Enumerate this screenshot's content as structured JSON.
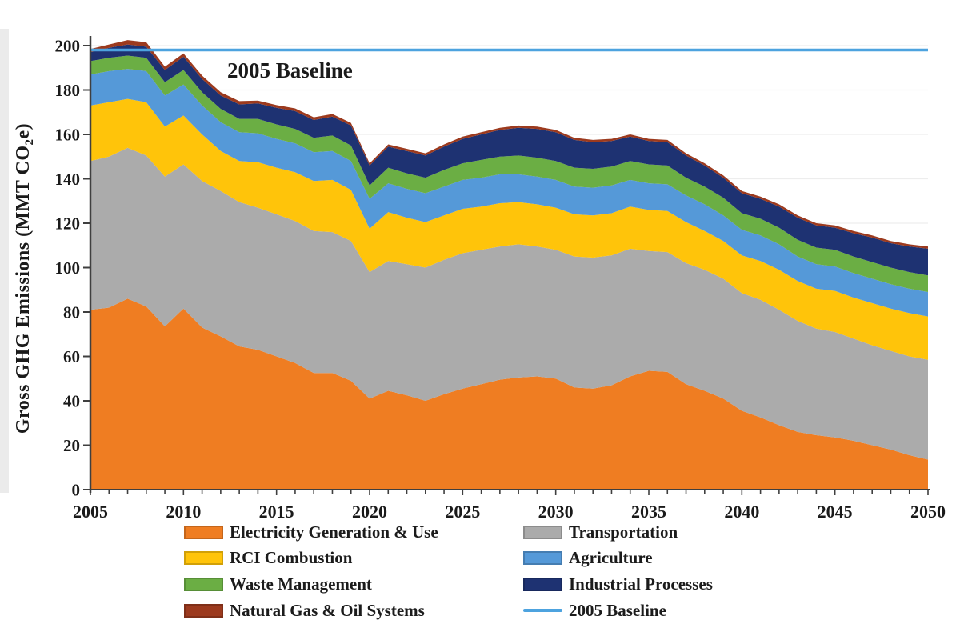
{
  "annotation": {
    "baseline_label": "2005 Baseline",
    "color": "#3E8EDE"
  },
  "axes": {
    "y_title_prefix": "Gross GHG Emissions (MMT CO",
    "y_title_sub": "2",
    "y_title_suffix": "e)",
    "y_ticks": [
      0,
      20,
      40,
      60,
      80,
      100,
      120,
      140,
      160,
      180,
      200
    ],
    "x_ticks": [
      2005,
      2010,
      2015,
      2020,
      2025,
      2030,
      2035,
      2040,
      2045,
      2050
    ],
    "axis_color": "#3f3f3f",
    "grid_color": "#ededed"
  },
  "legend": {
    "items": [
      {
        "key": "electricity",
        "label": "Electricity Generation & Use",
        "swatch": "patch",
        "color": "#EF7D22"
      },
      {
        "key": "transportation",
        "label": "Transportation",
        "swatch": "patch",
        "color": "#ABABAB"
      },
      {
        "key": "rci",
        "label": "RCI Combustion",
        "swatch": "patch",
        "color": "#FFC40A"
      },
      {
        "key": "agriculture",
        "label": "Agriculture",
        "swatch": "patch",
        "color": "#5599D8"
      },
      {
        "key": "waste",
        "label": "Waste Management",
        "swatch": "patch",
        "color": "#6BAE44"
      },
      {
        "key": "industrial",
        "label": "Industrial Processes",
        "swatch": "patch",
        "color": "#1E3272"
      },
      {
        "key": "natural-gas",
        "label": "Natural Gas & Oil Systems",
        "swatch": "patch",
        "color": "#9C3A1E"
      },
      {
        "key": "baseline",
        "label": "2005 Baseline",
        "swatch": "line",
        "color": "#4DA3DF"
      }
    ]
  },
  "chart_data": {
    "type": "area",
    "stacked": true,
    "title": "",
    "xlabel": "",
    "ylabel": "Gross GHG Emissions (MMT CO2e)",
    "ylim": [
      0,
      200
    ],
    "xlim": [
      2005,
      2050
    ],
    "grid": "faint horizontal",
    "legend_position": "bottom two-column",
    "x": [
      2005,
      2006,
      2007,
      2008,
      2009,
      2010,
      2011,
      2012,
      2013,
      2014,
      2015,
      2016,
      2017,
      2018,
      2019,
      2020,
      2021,
      2022,
      2023,
      2024,
      2025,
      2026,
      2027,
      2028,
      2029,
      2030,
      2031,
      2032,
      2033,
      2034,
      2035,
      2036,
      2037,
      2038,
      2039,
      2040,
      2041,
      2042,
      2043,
      2044,
      2045,
      2046,
      2047,
      2048,
      2049,
      2050
    ],
    "series": [
      {
        "key": "electricity",
        "name": "Electricity Generation & Use",
        "color": "#EF7D22",
        "values": [
          81,
          82,
          86,
          82.5,
          73.5,
          81.5,
          73,
          69,
          64.5,
          63,
          60,
          57,
          52.5,
          52.5,
          49,
          41,
          44.5,
          42.5,
          40,
          43,
          45.5,
          47.5,
          49.5,
          50.5,
          51,
          50,
          46,
          45.5,
          47,
          51,
          53.5,
          53,
          47.5,
          44.5,
          41,
          35.5,
          32.5,
          29,
          26,
          24.5,
          23.5,
          22,
          20,
          18,
          15.5,
          13.5
        ]
      },
      {
        "key": "transportation",
        "name": "Transportation",
        "color": "#ABABAB",
        "values": [
          67,
          68,
          68,
          68,
          67.5,
          65,
          66,
          65.5,
          65,
          64,
          64,
          64,
          64,
          63.5,
          63,
          57,
          58.5,
          59,
          60,
          60.5,
          61,
          60.5,
          60,
          60,
          58.5,
          58,
          59,
          59,
          58.5,
          57.5,
          54,
          54,
          54.5,
          54.5,
          54,
          53,
          53,
          52,
          50,
          48,
          47.5,
          46,
          45,
          44.5,
          44.5,
          45
        ]
      },
      {
        "key": "rci",
        "name": "RCI Combustion",
        "color": "#FFC40A",
        "values": [
          25,
          24.5,
          22,
          24,
          22.5,
          22,
          21,
          18,
          18.5,
          20.5,
          21,
          22,
          22.5,
          23.5,
          23,
          19.5,
          22,
          21,
          20.5,
          20,
          20,
          19.5,
          19.5,
          19,
          19,
          19,
          19,
          19,
          19,
          19,
          18.5,
          18.5,
          18.5,
          17.5,
          17,
          17,
          17.5,
          18,
          18,
          18,
          18.5,
          18.5,
          19,
          19,
          19.5,
          19.5
        ]
      },
      {
        "key": "agriculture",
        "name": "Agriculture",
        "color": "#5599D8",
        "values": [
          14,
          14,
          13.5,
          14,
          14,
          14,
          13,
          13,
          13,
          13,
          13,
          13,
          13,
          13,
          13,
          13.5,
          13,
          13,
          13,
          13,
          13,
          13,
          13,
          12.5,
          12.5,
          12.5,
          12.5,
          12.5,
          12.5,
          12,
          12,
          12,
          12,
          12,
          11.5,
          11.5,
          11.5,
          11.5,
          11,
          11,
          11,
          11,
          11,
          11,
          11,
          11
        ]
      },
      {
        "key": "waste",
        "name": "Waste Management",
        "color": "#6BAE44",
        "values": [
          6,
          6,
          6,
          6,
          6,
          6.5,
          6,
          6,
          6,
          6.5,
          6.5,
          6.5,
          6.5,
          7,
          7,
          6,
          7,
          7,
          7,
          7.5,
          7.5,
          8,
          8,
          8.5,
          8.5,
          8.5,
          8.5,
          8.5,
          8.5,
          8.5,
          8.5,
          8.5,
          8,
          8,
          8,
          7.5,
          7.5,
          7.5,
          7.5,
          7.5,
          7.5,
          7.5,
          7.5,
          7.5,
          7.5,
          7.5
        ]
      },
      {
        "key": "industrial",
        "name": "Industrial Processes",
        "color": "#1E3272",
        "values": [
          4,
          4.5,
          5,
          5,
          5.5,
          6,
          6,
          6,
          6.5,
          7,
          7.5,
          8,
          8,
          8.5,
          9,
          9,
          9.5,
          10,
          10,
          10.5,
          11,
          11.5,
          12,
          12.5,
          13,
          13,
          12.5,
          12,
          11.5,
          11,
          10.5,
          10.5,
          10,
          9.5,
          9,
          9,
          9,
          9.5,
          10,
          10,
          10,
          10.5,
          11,
          11,
          11.5,
          12
        ]
      },
      {
        "key": "natural-gas",
        "name": "Natural Gas & Oil Systems",
        "color": "#9C3A1E",
        "values": [
          1.5,
          1.5,
          2,
          2,
          1.5,
          1.5,
          1.5,
          1.5,
          1.5,
          1.2,
          1.2,
          1.2,
          1.2,
          1.2,
          1.2,
          1,
          1,
          1,
          1,
          1,
          1,
          1,
          1,
          1,
          1,
          1,
          1,
          1,
          1,
          1,
          1,
          1,
          1,
          1,
          1,
          1,
          1,
          1,
          1,
          1,
          1,
          1,
          1,
          1,
          1,
          1
        ]
      }
    ],
    "baseline": {
      "label": "2005 Baseline",
      "value": 198,
      "color": "#4DA3DF"
    }
  }
}
